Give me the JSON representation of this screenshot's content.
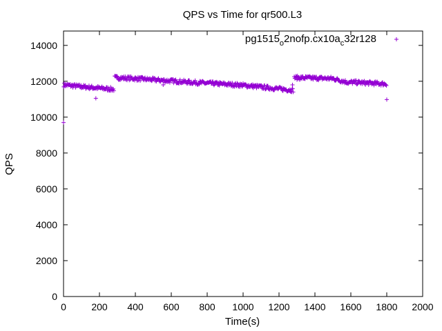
{
  "chart_data": {
    "type": "scatter",
    "title": "QPS vs Time for qr500.L3",
    "xlabel": "Time(s)",
    "ylabel": "QPS",
    "xlim": [
      0,
      2000
    ],
    "ylim": [
      0,
      14800
    ],
    "xticks": [
      0,
      200,
      400,
      600,
      800,
      1000,
      1200,
      1400,
      1600,
      1800,
      2000
    ],
    "yticks": [
      0,
      2000,
      4000,
      6000,
      8000,
      10000,
      12000,
      14000
    ],
    "grid": false,
    "legend_position": "top-right",
    "marker": "+",
    "series": [
      {
        "name": "pg1515_o2nofp.cx10a_c32r128",
        "legend_main": "pg1515",
        "legend_sub1": "o",
        "legend_mid": "2nofp.cx10a",
        "legend_sub2": "c",
        "legend_end": "32r128",
        "color": "#9400d3",
        "segments": [
          {
            "x_start": 1,
            "x_end": 100,
            "y_start": 11800,
            "y_end": 11700
          },
          {
            "x_start": 100,
            "x_end": 280,
            "y_start": 11700,
            "y_end": 11550
          },
          {
            "x_start": 285,
            "x_end": 400,
            "y_start": 12200,
            "y_end": 12150
          },
          {
            "x_start": 400,
            "x_end": 700,
            "y_start": 12150,
            "y_end": 11950
          },
          {
            "x_start": 700,
            "x_end": 1000,
            "y_start": 11950,
            "y_end": 11780
          },
          {
            "x_start": 1000,
            "x_end": 1280,
            "y_start": 11780,
            "y_end": 11500
          },
          {
            "x_start": 1285,
            "x_end": 1500,
            "y_start": 12200,
            "y_end": 12150
          },
          {
            "x_start": 1500,
            "x_end": 1600,
            "y_start": 12150,
            "y_end": 11900
          },
          {
            "x_start": 1600,
            "x_end": 1800,
            "y_start": 11950,
            "y_end": 11850
          }
        ],
        "outliers": [
          {
            "x": 0,
            "y": 9700
          },
          {
            "x": 180,
            "y": 11050
          },
          {
            "x": 1800,
            "y": 10980
          },
          {
            "x": 1275,
            "y": 11800
          },
          {
            "x": 555,
            "y": 11800
          }
        ]
      }
    ]
  }
}
